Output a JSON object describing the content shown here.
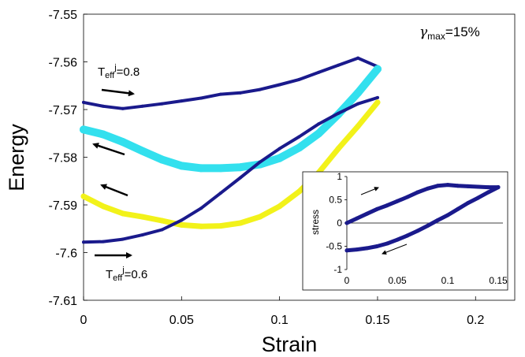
{
  "chart_data": [
    {
      "type": "scatter",
      "title": "",
      "annotation_main": "γ",
      "annotation_sub": "max",
      "annotation_tail": "=15%",
      "xlabel": "Strain",
      "ylabel": "Energy",
      "xlim": [
        0,
        0.22
      ],
      "ylim": [
        -7.61,
        -7.55
      ],
      "xticks": [
        "0",
        "0.05",
        "0.1",
        "0.15",
        "0.2"
      ],
      "yticks": [
        "-7.55",
        "-7.56",
        "-7.57",
        "-7.58",
        "-7.59",
        "-7.6",
        "-7.61"
      ],
      "grid": false,
      "legend": "none",
      "label_upper": {
        "prefix": "T",
        "sub": "eff",
        "sup": "j",
        "suffix": "=0.8"
      },
      "label_lower": {
        "prefix": "T",
        "sub": "eff",
        "sup": "j",
        "suffix": "=0.6"
      },
      "series": [
        {
          "color": "#1a1a8c",
          "x": [
            0,
            0.01,
            0.02,
            0.03,
            0.04,
            0.05,
            0.06,
            0.07,
            0.08,
            0.09,
            0.1,
            0.11,
            0.12,
            0.13,
            0.14,
            0.15
          ],
          "y": [
            -7.5685,
            -7.5693,
            -7.5698,
            -7.5693,
            -7.5688,
            -7.5682,
            -7.5676,
            -7.5668,
            -7.5665,
            -7.5658,
            -7.5648,
            -7.5637,
            -7.5622,
            -7.5607,
            -7.5592,
            -7.561
          ]
        },
        {
          "color": "#33e0ee",
          "x": [
            0,
            0.01,
            0.02,
            0.03,
            0.04,
            0.05,
            0.06,
            0.07,
            0.08,
            0.09,
            0.1,
            0.11,
            0.12,
            0.13,
            0.14,
            0.15
          ],
          "y": [
            -7.5742,
            -7.5752,
            -7.5768,
            -7.5787,
            -7.5805,
            -7.5818,
            -7.5823,
            -7.5823,
            -7.5821,
            -7.5815,
            -7.5802,
            -7.578,
            -7.575,
            -7.571,
            -7.5665,
            -7.5615
          ]
        },
        {
          "color": "#f2f21a",
          "x": [
            0,
            0.01,
            0.02,
            0.03,
            0.04,
            0.05,
            0.06,
            0.07,
            0.08,
            0.09,
            0.1,
            0.11,
            0.12,
            0.13,
            0.14,
            0.15
          ],
          "y": [
            -7.5882,
            -7.5903,
            -7.5918,
            -7.5925,
            -7.5933,
            -7.5942,
            -7.5945,
            -7.5944,
            -7.5938,
            -7.5925,
            -7.5903,
            -7.5872,
            -7.5832,
            -7.5782,
            -7.5735,
            -7.5685
          ]
        },
        {
          "color": "#1a1a8c",
          "x": [
            0,
            0.01,
            0.02,
            0.03,
            0.04,
            0.05,
            0.06,
            0.07,
            0.08,
            0.09,
            0.1,
            0.11,
            0.12,
            0.13,
            0.14,
            0.15
          ],
          "y": [
            -7.5978,
            -7.5977,
            -7.5972,
            -7.5963,
            -7.5952,
            -7.5932,
            -7.5907,
            -7.5875,
            -7.5843,
            -7.581,
            -7.5782,
            -7.5757,
            -7.573,
            -7.5708,
            -7.5688,
            -7.5675
          ]
        }
      ]
    },
    {
      "type": "scatter",
      "ylabel": "stress",
      "xlim": [
        0,
        0.15
      ],
      "ylim": [
        -1,
        1
      ],
      "xticks": [
        "0",
        "0.05",
        "0.1",
        "0.15"
      ],
      "yticks": [
        "1",
        "0.5",
        "0",
        "-0.5",
        "-1"
      ],
      "series": [
        {
          "color": "#1a1a8c",
          "x": [
            0,
            0.01,
            0.02,
            0.03,
            0.04,
            0.05,
            0.06,
            0.07,
            0.08,
            0.09,
            0.1,
            0.11,
            0.12,
            0.13,
            0.14,
            0.15
          ],
          "y": [
            0.0,
            0.1,
            0.2,
            0.3,
            0.38,
            0.47,
            0.56,
            0.66,
            0.74,
            0.8,
            0.82,
            0.8,
            0.79,
            0.78,
            0.77,
            0.77
          ]
        },
        {
          "color": "#1a1a8c",
          "x": [
            0.15,
            0.14,
            0.13,
            0.12,
            0.11,
            0.1,
            0.09,
            0.08,
            0.07,
            0.06,
            0.05,
            0.04,
            0.03,
            0.02,
            0.01,
            0.0
          ],
          "y": [
            0.77,
            0.66,
            0.54,
            0.43,
            0.3,
            0.17,
            0.06,
            -0.06,
            -0.17,
            -0.27,
            -0.36,
            -0.44,
            -0.5,
            -0.54,
            -0.57,
            -0.59
          ]
        }
      ]
    }
  ]
}
